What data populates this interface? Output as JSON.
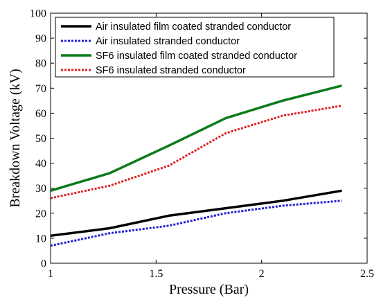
{
  "chart_data": {
    "type": "line",
    "title": "",
    "xlabel": "Pressure (Bar)",
    "ylabel": "Breakdown Voltage (kV)",
    "xlim": [
      1,
      2.5
    ],
    "ylim": [
      0,
      100
    ],
    "xticks": [
      1,
      1.5,
      2,
      2.5
    ],
    "yticks": [
      0,
      10,
      20,
      30,
      40,
      50,
      60,
      70,
      80,
      90,
      100
    ],
    "xtick_labels": [
      "1",
      "1.5",
      "2",
      "2.5"
    ],
    "ytick_labels": [
      "0",
      "10",
      "20",
      "30",
      "40",
      "50",
      "60",
      "70",
      "80",
      "90",
      "100"
    ],
    "grid": false,
    "legend_position": "top-left",
    "series": [
      {
        "name": "Air insulated film coated stranded conductor",
        "color": "#000000",
        "style": "solid",
        "x": [
          1,
          1.28,
          1.56,
          1.83,
          2.1,
          2.38
        ],
        "y": [
          11,
          14,
          19,
          22,
          25,
          29
        ]
      },
      {
        "name": "Air insulated stranded conductor",
        "color": "#1f1fd6",
        "style": "dotted",
        "x": [
          1,
          1.28,
          1.56,
          1.83,
          2.1,
          2.38
        ],
        "y": [
          7,
          12,
          15,
          20,
          23,
          25
        ]
      },
      {
        "name": "SF6 insulated film coated stranded conductor",
        "color": "#0b7a1a",
        "style": "solid",
        "x": [
          1,
          1.28,
          1.56,
          1.83,
          2.1,
          2.38
        ],
        "y": [
          29,
          36,
          47,
          58,
          65,
          71
        ]
      },
      {
        "name": "SF6 insulated stranded conductor",
        "color": "#e02020",
        "style": "dotted",
        "x": [
          1,
          1.28,
          1.56,
          1.83,
          2.1,
          2.38
        ],
        "y": [
          26,
          31,
          39,
          52,
          59,
          63
        ]
      }
    ]
  }
}
